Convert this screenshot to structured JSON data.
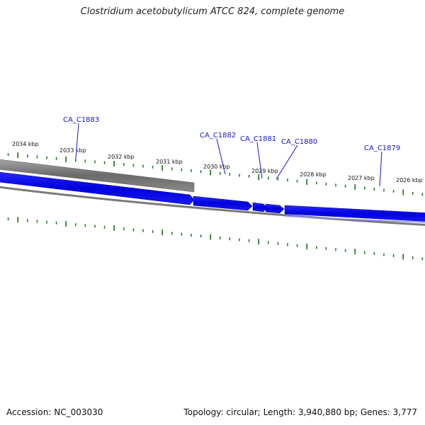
{
  "title": "Clostridium acetobutylicum ATCC 824, complete genome",
  "accession_text": "Accession: NC_003030",
  "topology_text": "Topology: circular; Length: 3,940,880 bp; Genes: 3,777",
  "scale_labels": [
    "2034 kbp",
    "2033 kbp",
    "2032 kbp",
    "2031 kbp",
    "2030 kbp",
    "2029 kbp",
    "2028 kbp",
    "2027 kbp",
    "2026 kbp"
  ],
  "genes": [
    {
      "name": "CA_C1883",
      "strand": "reverse"
    },
    {
      "name": "CA_C1882",
      "strand": "forward"
    },
    {
      "name": "CA_C1881",
      "strand": "forward"
    },
    {
      "name": "CA_C1880",
      "strand": "forward"
    },
    {
      "name": "CA_C1879",
      "strand": "forward"
    }
  ],
  "colors": {
    "forward_gene": "#0000ee",
    "reverse_gene": "#666666",
    "backbone": "#777777",
    "tick": "#2a7a2a",
    "label": "#1515c8"
  }
}
